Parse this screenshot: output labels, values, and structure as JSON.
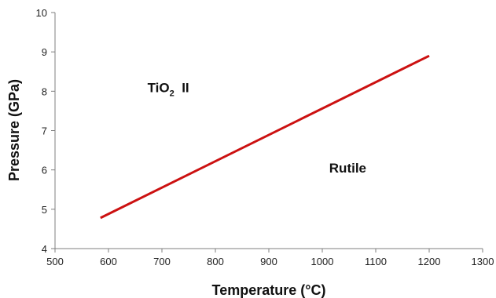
{
  "chart_data": {
    "type": "line",
    "xlabel": "Temperature (°C)",
    "ylabel": "Pressure (GPa)",
    "xlim": [
      500,
      1300
    ],
    "ylim": [
      4,
      10
    ],
    "xticks": [
      "500",
      "600",
      "700",
      "800",
      "900",
      "1000",
      "1100",
      "1200",
      "1300"
    ],
    "yticks": [
      "4",
      "5",
      "6",
      "7",
      "8",
      "9",
      "10"
    ],
    "grid": false,
    "series": [
      {
        "color": "#cc1111",
        "x": [
          585,
          1200
        ],
        "y": [
          4.78,
          8.9
        ]
      }
    ],
    "annotations": [
      {
        "id": "tio2",
        "text_main": "TiO",
        "text_sub": "2",
        "text_tail": "  II",
        "x": 720,
        "y": 8.1
      },
      {
        "id": "rutile",
        "text": "Rutile",
        "x": 1030,
        "y": 6.05
      }
    ]
  },
  "colors": {
    "line": "#cc1111",
    "axis": "#7f7f7f"
  }
}
